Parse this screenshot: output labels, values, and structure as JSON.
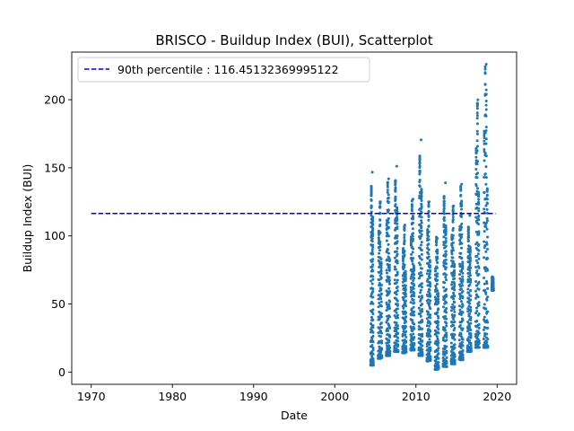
{
  "chart_data": {
    "type": "scatter",
    "title": "BRISCO - Buildup Index (BUI), Scatterplot",
    "xlabel": "Date",
    "ylabel": "Buildup Index (BUI)",
    "xlim": [
      1967.6,
      2022.4
    ],
    "ylim": [
      -9,
      235
    ],
    "x_ticks": [
      1970,
      1980,
      1990,
      2000,
      2010,
      2020
    ],
    "y_ticks": [
      0,
      50,
      100,
      150,
      200
    ],
    "grid": false,
    "legend_position": "top-left",
    "point_color": "#1f77b4",
    "reference_line": {
      "label": "90th percentile : 116.45132369995122",
      "value": 116.45132369995122,
      "x_range": [
        1970.0,
        2019.8
      ],
      "color": "#0000cd",
      "style": "dashed"
    },
    "seasons": [
      {
        "year": 2004,
        "start": 2004.42,
        "end": 2004.75,
        "min": 5,
        "max": 148
      },
      {
        "year": 2005,
        "start": 2005.35,
        "end": 2005.8,
        "min": 10,
        "max": 125
      },
      {
        "year": 2006,
        "start": 2006.35,
        "end": 2006.8,
        "min": 12,
        "max": 142
      },
      {
        "year": 2007,
        "start": 2007.35,
        "end": 2007.8,
        "min": 15,
        "max": 153
      },
      {
        "year": 2008,
        "start": 2008.35,
        "end": 2008.8,
        "min": 14,
        "max": 108
      },
      {
        "year": 2009,
        "start": 2009.35,
        "end": 2009.8,
        "min": 16,
        "max": 127
      },
      {
        "year": 2010,
        "start": 2010.35,
        "end": 2010.8,
        "min": 12,
        "max": 172
      },
      {
        "year": 2011,
        "start": 2011.35,
        "end": 2011.8,
        "min": 8,
        "max": 125
      },
      {
        "year": 2012,
        "start": 2012.35,
        "end": 2012.8,
        "min": 2,
        "max": 100
      },
      {
        "year": 2013,
        "start": 2013.35,
        "end": 2013.8,
        "min": 4,
        "max": 140
      },
      {
        "year": 2014,
        "start": 2014.35,
        "end": 2014.8,
        "min": 6,
        "max": 122
      },
      {
        "year": 2015,
        "start": 2015.35,
        "end": 2015.8,
        "min": 9,
        "max": 138
      },
      {
        "year": 2016,
        "start": 2016.35,
        "end": 2016.8,
        "min": 15,
        "max": 115
      },
      {
        "year": 2017,
        "start": 2017.35,
        "end": 2017.8,
        "min": 18,
        "max": 200
      },
      {
        "year": 2018,
        "start": 2018.35,
        "end": 2018.85,
        "min": 18,
        "max": 228
      },
      {
        "year": 2019,
        "start": 2019.35,
        "end": 2019.55,
        "min": 60,
        "max": 70
      }
    ]
  }
}
